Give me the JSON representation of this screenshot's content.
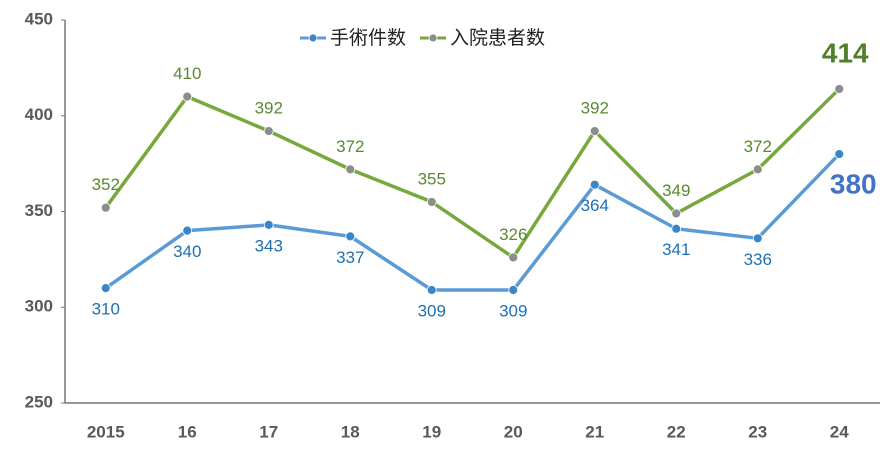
{
  "chart_data": {
    "type": "line",
    "categories": [
      "2015",
      "16",
      "17",
      "18",
      "19",
      "20",
      "21",
      "22",
      "23",
      "24"
    ],
    "series": [
      {
        "name": "手術件数",
        "color": "#5b9bd5",
        "marker_color": "#3a87c8",
        "label_color": "#1f70b3",
        "values": [
          310,
          340,
          343,
          337,
          309,
          309,
          364,
          341,
          336,
          380
        ]
      },
      {
        "name": "入院患者数",
        "color": "#77a83c",
        "marker_color": "#8c8c8c",
        "label_color": "#5a8a2e",
        "values": [
          352,
          410,
          392,
          372,
          355,
          326,
          392,
          349,
          372,
          414
        ]
      }
    ],
    "ylim": [
      250,
      450
    ],
    "yticks": [
      250,
      300,
      350,
      400,
      450
    ],
    "grid": false
  }
}
